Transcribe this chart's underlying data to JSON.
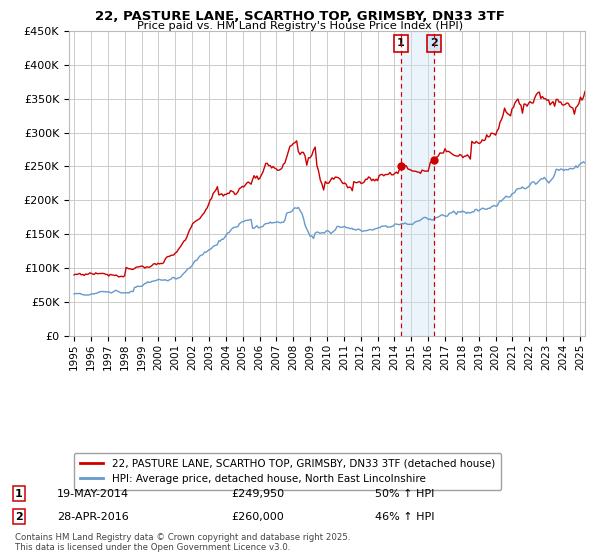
{
  "title_line1": "22, PASTURE LANE, SCARTHO TOP, GRIMSBY, DN33 3TF",
  "title_line2": "Price paid vs. HM Land Registry's House Price Index (HPI)",
  "red_label": "22, PASTURE LANE, SCARTHO TOP, GRIMSBY, DN33 3TF (detached house)",
  "blue_label": "HPI: Average price, detached house, North East Lincolnshire",
  "annotation1": [
    "1",
    "19-MAY-2014",
    "£249,950",
    "50% ↑ HPI"
  ],
  "annotation2": [
    "2",
    "28-APR-2016",
    "£260,000",
    "46% ↑ HPI"
  ],
  "footer": "Contains HM Land Registry data © Crown copyright and database right 2025.\nThis data is licensed under the Open Government Licence v3.0.",
  "vline1_x": 2014.38,
  "vline2_x": 2016.33,
  "ylim": [
    0,
    450000
  ],
  "yticks": [
    0,
    50000,
    100000,
    150000,
    200000,
    250000,
    300000,
    350000,
    400000,
    450000
  ],
  "xlim_left": 1994.7,
  "xlim_right": 2025.3,
  "red_color": "#cc0000",
  "blue_color": "#6699cc",
  "vline_color": "#cc0000",
  "shade_color": "#d0e4f7",
  "background_color": "#ffffff",
  "grid_color": "#cccccc",
  "sale1_dot_x": 2014.38,
  "sale1_dot_y": 249950,
  "sale2_dot_x": 2016.33,
  "sale2_dot_y": 260000
}
